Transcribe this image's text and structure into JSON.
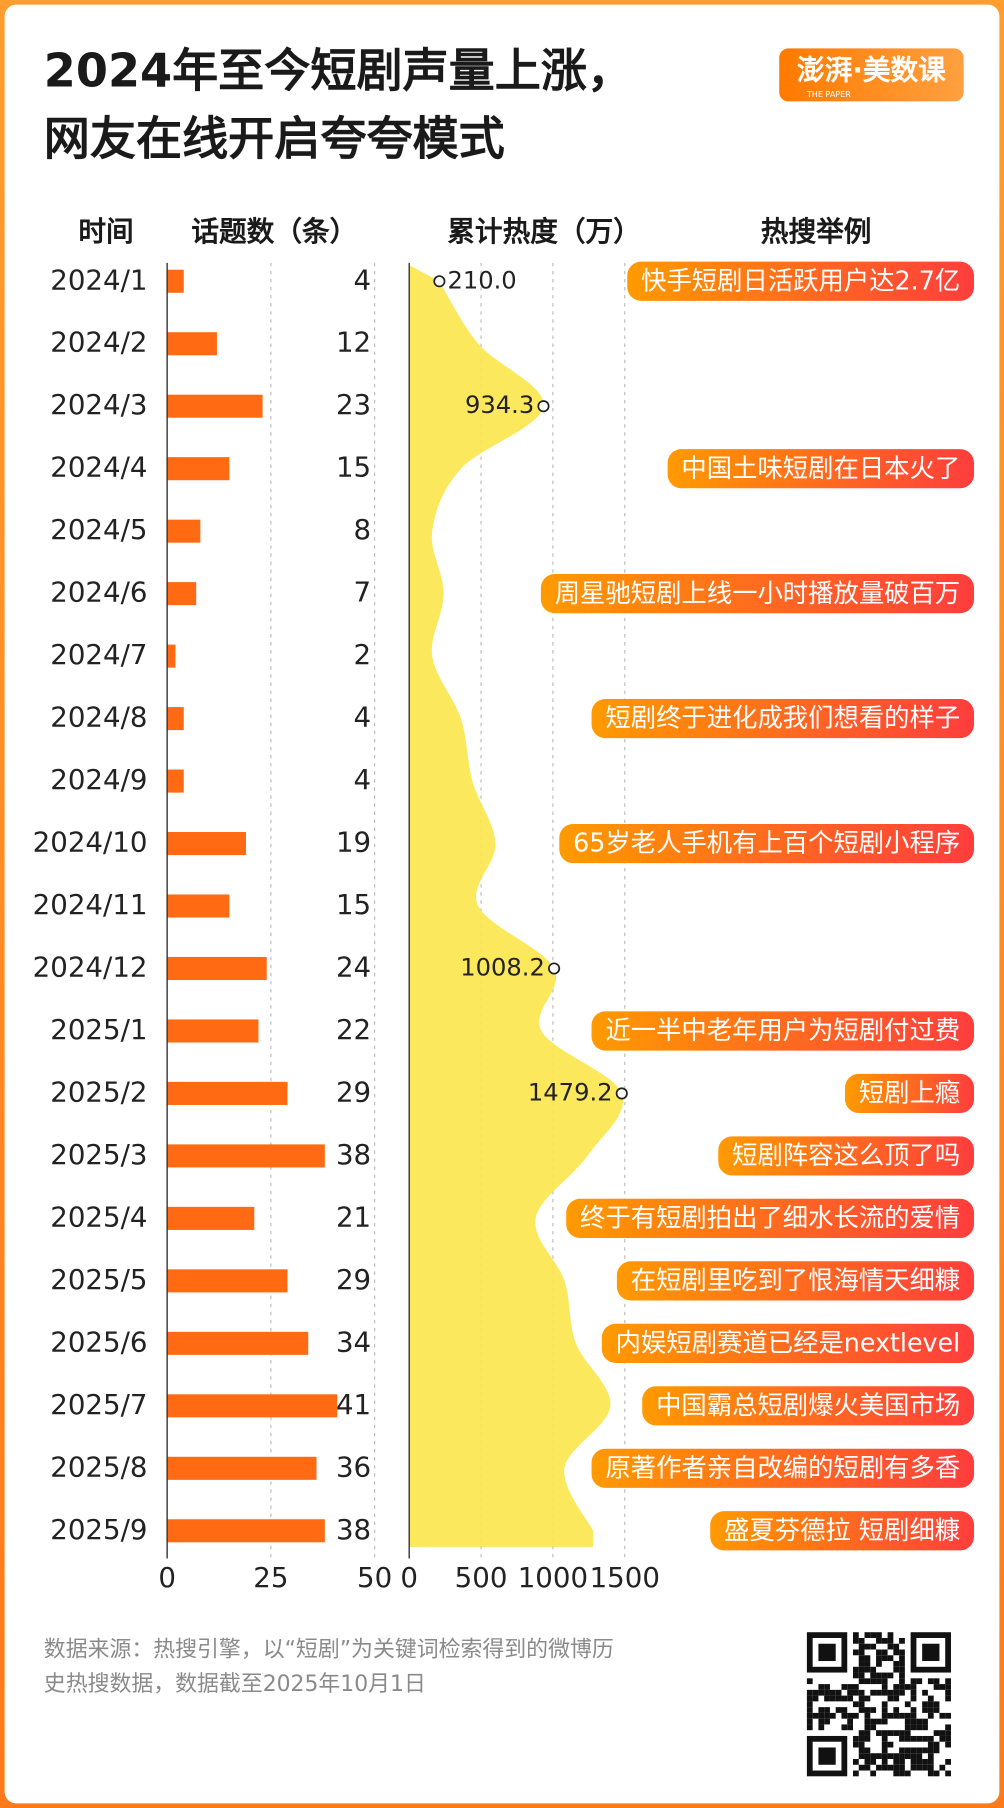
{
  "title": [
    "2024年至今短剧声量上涨，",
    "网友在线开启夸夸模式"
  ],
  "logo": {
    "text": "澎湃·美数课",
    "sub": "THE PAPER"
  },
  "category_header": "时间",
  "chart_data": [
    {
      "type": "bar",
      "x_label": "话题数（条）",
      "categories": [
        "2024/1",
        "2024/2",
        "2024/3",
        "2024/4",
        "2024/5",
        "2024/6",
        "2024/7",
        "2024/8",
        "2024/9",
        "2024/10",
        "2024/11",
        "2024/12",
        "2025/1",
        "2025/2",
        "2025/3",
        "2025/4",
        "2025/5",
        "2025/6",
        "2025/7",
        "2025/8",
        "2025/9"
      ],
      "values": [
        4,
        12,
        23,
        15,
        8,
        7,
        2,
        4,
        4,
        19,
        15,
        24,
        22,
        29,
        38,
        21,
        29,
        34,
        41,
        36,
        38
      ],
      "color": "#ff6a13",
      "xlim": [
        0,
        50
      ],
      "xticks": [
        0,
        25,
        50
      ],
      "grid": true
    },
    {
      "type": "area",
      "x_label": "累计热度（万）",
      "values": [
        210,
        480,
        934.3,
        360,
        160,
        240,
        160,
        360,
        440,
        600,
        480,
        1008.2,
        920,
        1479.2,
        1240,
        880,
        1080,
        1160,
        1400,
        1080,
        1280
      ],
      "value_labels": [
        "210.0",
        null,
        "934.3",
        null,
        null,
        null,
        null,
        null,
        null,
        null,
        null,
        "1008.2",
        null,
        "1479.2",
        null,
        null,
        null,
        null,
        null,
        null,
        null
      ],
      "color": "#fbe64e",
      "xlim": [
        0,
        1500
      ],
      "xticks": [
        0,
        500,
        1000,
        1500
      ],
      "grid": true
    }
  ],
  "examples": {
    "header": "热搜举例",
    "items": [
      "快手短剧日活跃用户达2.7亿",
      null,
      null,
      "中国土味短剧在日本火了",
      null,
      "周星驰短剧上线一小时播放量破百万",
      null,
      "短剧终于进化成我们想看的样子",
      null,
      "65岁老人手机有上百个短剧小程序",
      null,
      null,
      "近一半中老年用户为短剧付过费",
      "短剧上瘾",
      "短剧阵容这么顶了吗",
      "终于有短剧拍出了细水长流的爱情",
      "在短剧里吃到了恨海情天细糠",
      "内娱短剧赛道已经是nextlevel",
      "中国霸总短剧爆火美国市场",
      "原著作者亲自改编的短剧有多香",
      "盛夏芬德拉 短剧细糠"
    ]
  },
  "source": [
    "数据来源：热搜引擎，以“短剧”为关键词检索得到的微博历",
    "史热搜数据，数据截至2025年10月1日"
  ]
}
